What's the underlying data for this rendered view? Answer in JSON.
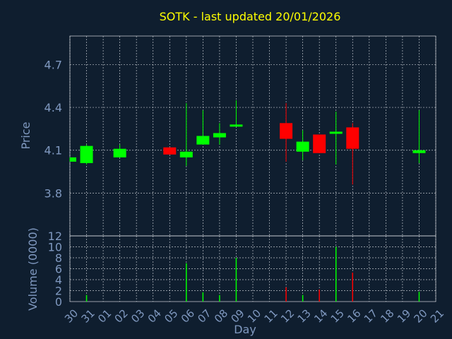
{
  "chart_data": [
    {
      "type": "candlestick",
      "title": "SOTK - last updated 20/01/2026",
      "ylabel": "Price",
      "ylim": [
        3.5,
        4.9
      ],
      "y_ticks": [
        "3.8",
        "4.1",
        "4.4",
        "4.7"
      ],
      "y_tick_values": [
        3.8,
        4.1,
        4.4,
        4.7
      ],
      "grid": true,
      "up_color": "#00ff00",
      "down_color": "#ff0000",
      "candles": [
        {
          "day": "30",
          "open": 4.02,
          "close": 4.05,
          "high": 4.05,
          "low": 4.02
        },
        {
          "day": "31",
          "open": 4.01,
          "close": 4.13,
          "high": 4.14,
          "low": 4.0
        },
        {
          "day": "02",
          "open": 4.05,
          "close": 4.11,
          "high": 4.14,
          "low": 4.05
        },
        {
          "day": "05",
          "open": 4.12,
          "close": 4.07,
          "high": 4.12,
          "low": 4.07
        },
        {
          "day": "06",
          "open": 4.05,
          "close": 4.09,
          "high": 4.43,
          "low": 3.99
        },
        {
          "day": "07",
          "open": 4.14,
          "close": 4.2,
          "high": 4.38,
          "low": 4.14
        },
        {
          "day": "08",
          "open": 4.19,
          "close": 4.22,
          "high": 4.29,
          "low": 4.14
        },
        {
          "day": "09",
          "open": 4.27,
          "close": 4.28,
          "high": 4.45,
          "low": 4.27
        },
        {
          "day": "12",
          "open": 4.29,
          "close": 4.18,
          "high": 4.43,
          "low": 4.02
        },
        {
          "day": "13",
          "open": 4.09,
          "close": 4.16,
          "high": 4.24,
          "low": 4.03
        },
        {
          "day": "14",
          "open": 4.21,
          "close": 4.08,
          "high": 4.21,
          "low": 4.08
        },
        {
          "day": "15",
          "open": 4.22,
          "close": 4.23,
          "high": 4.37,
          "low": 4.0
        },
        {
          "day": "16",
          "open": 4.26,
          "close": 4.11,
          "high": 4.29,
          "low": 3.86
        },
        {
          "day": "20",
          "open": 4.08,
          "close": 4.1,
          "high": 4.38,
          "low": 4.01
        }
      ]
    },
    {
      "type": "bar",
      "ylabel": "Volume (0000)",
      "xlabel": "Day",
      "ylim": [
        0,
        12
      ],
      "y_ticks": [
        "0",
        "2",
        "4",
        "6",
        "8",
        "10",
        "12"
      ],
      "y_tick_values": [
        0,
        2,
        4,
        6,
        8,
        10,
        12
      ],
      "categories": [
        "30",
        "31",
        "01",
        "02",
        "03",
        "04",
        "05",
        "06",
        "07",
        "08",
        "09",
        "10",
        "11",
        "12",
        "13",
        "14",
        "15",
        "16",
        "17",
        "18",
        "19",
        "20",
        "21"
      ],
      "bars": [
        {
          "day": "31",
          "value": 1.2,
          "color": "#00ff00"
        },
        {
          "day": "06",
          "value": 7.0,
          "color": "#00ff00"
        },
        {
          "day": "07",
          "value": 1.7,
          "color": "#00ff00"
        },
        {
          "day": "08",
          "value": 1.2,
          "color": "#00ff00"
        },
        {
          "day": "09",
          "value": 8.0,
          "color": "#00ff00"
        },
        {
          "day": "12",
          "value": 2.6,
          "color": "#ff0000"
        },
        {
          "day": "13",
          "value": 1.2,
          "color": "#00ff00"
        },
        {
          "day": "14",
          "value": 2.2,
          "color": "#ff0000"
        },
        {
          "day": "15",
          "value": 10.0,
          "color": "#00ff00"
        },
        {
          "day": "16",
          "value": 5.3,
          "color": "#ff0000"
        },
        {
          "day": "20",
          "value": 1.8,
          "color": "#00ff00"
        }
      ]
    }
  ]
}
